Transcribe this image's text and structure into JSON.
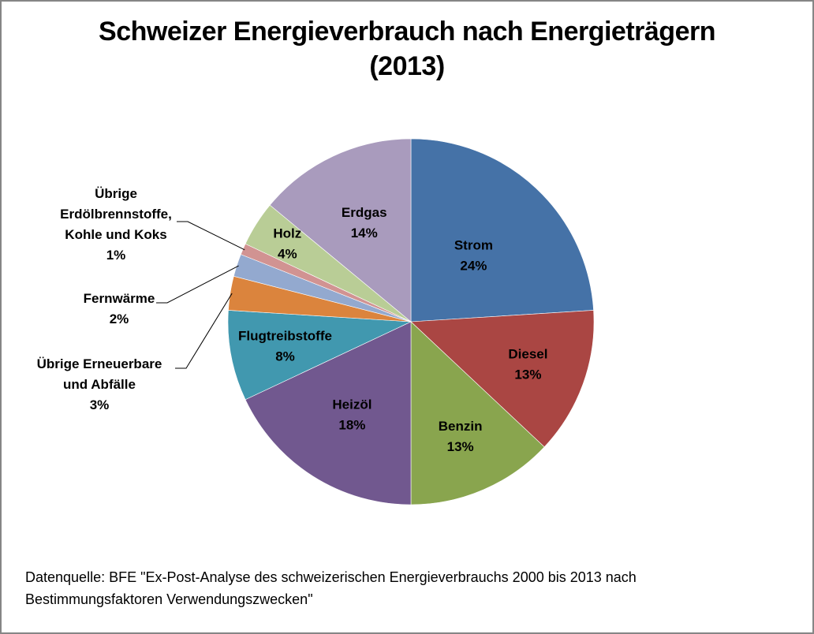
{
  "chart_data": {
    "type": "pie",
    "title_line1": "Schweizer Energieverbrauch nach Energieträgern",
    "title_line2": "(2013)",
    "start": "12 o'clock, clockwise",
    "slices": [
      {
        "name": "Strom",
        "lines": [
          "Strom"
        ],
        "value": 24,
        "pct_label": "24%",
        "color": "#4572A7",
        "label_pos": "inside"
      },
      {
        "name": "Diesel",
        "lines": [
          "Diesel"
        ],
        "value": 13,
        "pct_label": "13%",
        "color": "#AA4643",
        "label_pos": "inside"
      },
      {
        "name": "Benzin",
        "lines": [
          "Benzin"
        ],
        "value": 13,
        "pct_label": "13%",
        "color": "#89A54E",
        "label_pos": "inside"
      },
      {
        "name": "Heizöl",
        "lines": [
          "Heizöl"
        ],
        "value": 18,
        "pct_label": "18%",
        "color": "#71588F",
        "label_pos": "inside"
      },
      {
        "name": "Flugtreibstoffe",
        "lines": [
          "Flugtreibstoffe"
        ],
        "value": 8,
        "pct_label": "8%",
        "color": "#4198AF",
        "label_pos": "inside"
      },
      {
        "name": "Übrige Erneuerbare und Abfälle",
        "lines": [
          "Übrige Erneuerbare",
          "und Abfälle"
        ],
        "value": 3,
        "pct_label": "3%",
        "color": "#DB843D",
        "label_pos": "outside"
      },
      {
        "name": "Fernwärme",
        "lines": [
          "Fernwärme"
        ],
        "value": 2,
        "pct_label": "2%",
        "color": "#93A9CF",
        "label_pos": "outside"
      },
      {
        "name": "Übrige Erdölbrennstoffe, Kohle und Koks",
        "lines": [
          "Übrige",
          "Erdölbrennstoffe,",
          "Kohle und Koks"
        ],
        "value": 1,
        "pct_label": "1%",
        "color": "#D19392",
        "label_pos": "outside"
      },
      {
        "name": "Holz",
        "lines": [
          "Holz"
        ],
        "value": 4,
        "pct_label": "4%",
        "color": "#B9CD96",
        "label_pos": "inside"
      },
      {
        "name": "Erdgas",
        "lines": [
          "Erdgas"
        ],
        "value": 14,
        "pct_label": "14%",
        "color": "#A99BBD",
        "label_pos": "inside"
      }
    ]
  },
  "source": {
    "line1": "Datenquelle: BFE \"Ex-Post-Analyse des schweizerischen Energieverbrauchs 2000 bis 2013 nach",
    "line2": "Bestimmungsfaktoren Verwendungszwecken\""
  }
}
